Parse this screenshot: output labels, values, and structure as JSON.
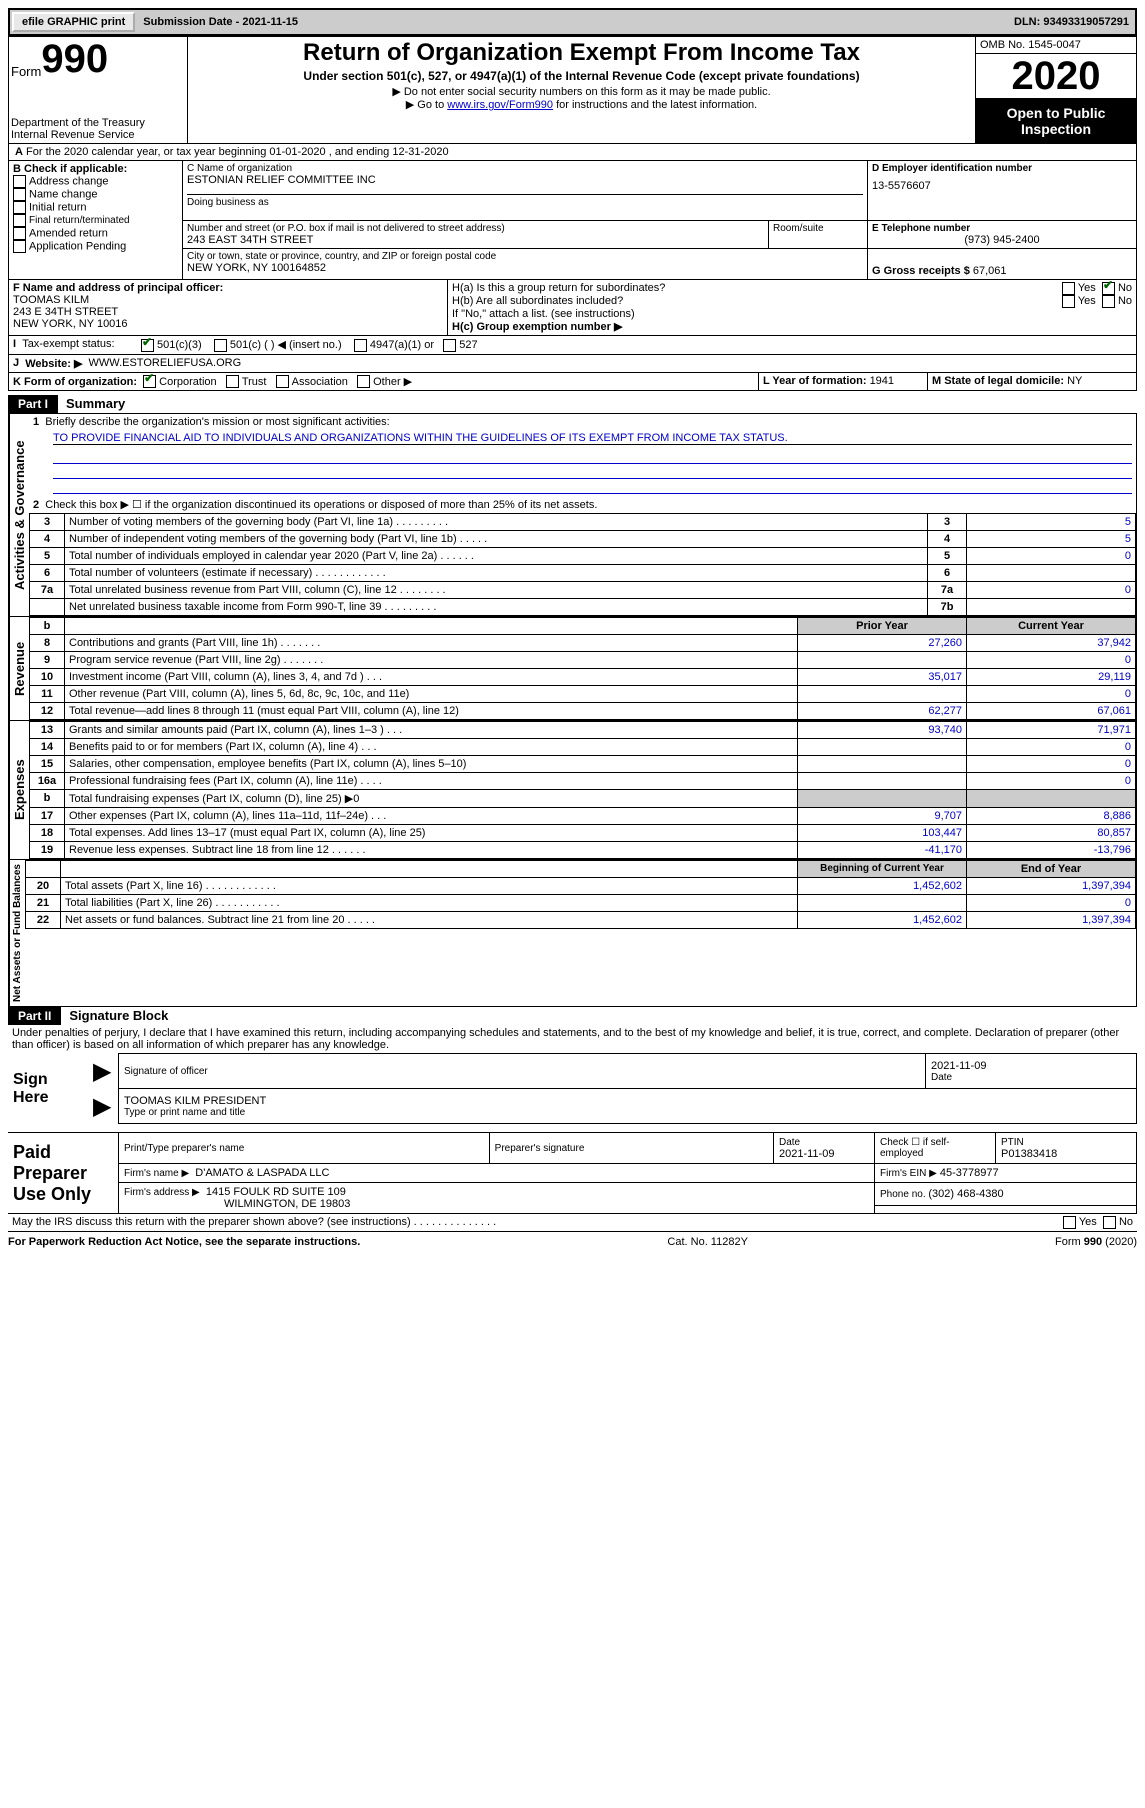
{
  "topbar": {
    "efile": "efile GRAPHIC print",
    "subdate_label": "Submission Date - ",
    "subdate": "2021-11-15",
    "dln_label": "DLN: ",
    "dln": "93493319057291"
  },
  "header": {
    "form_word": "Form",
    "form_no": "990",
    "dept1": "Department of the Treasury",
    "dept2": "Internal Revenue Service",
    "title": "Return of Organization Exempt From Income Tax",
    "sub1": "Under section 501(c), 527, or 4947(a)(1) of the Internal Revenue Code (except private foundations)",
    "sub2": "▶ Do not enter social security numbers on this form as it may be made public.",
    "sub3_a": "▶ Go to ",
    "sub3_link": "www.irs.gov/Form990",
    "sub3_b": " for instructions and the latest information.",
    "omb": "OMB No. 1545-0047",
    "year": "2020",
    "open1": "Open to Public",
    "open2": "Inspection"
  },
  "A": {
    "yearline": "For the 2020 calendar year, or tax year beginning 01-01-2020    , and ending 12-31-2020",
    "b_label": "B Check if applicable:",
    "b_opts": [
      "Address change",
      "Name change",
      "Initial return",
      "Final return/terminated",
      "Amended return",
      "Application Pending"
    ],
    "c_name_label": "C Name of organization",
    "org_name": "ESTONIAN RELIEF COMMITTEE INC",
    "dba_label": "Doing business as",
    "addr_label": "Number and street (or P.O. box if mail is not delivered to street address)",
    "room_label": "Room/suite",
    "addr": "243 EAST 34TH STREET",
    "city_label": "City or town, state or province, country, and ZIP or foreign postal code",
    "city": "NEW YORK, NY  100164852",
    "d_label": "D Employer identification number",
    "ein": "13-5576607",
    "e_label": "E Telephone number",
    "phone": "(973) 945-2400",
    "g_label": "G Gross receipts $ ",
    "gross": "67,061",
    "f_label": "F  Name and address of principal officer:",
    "officer_name": "TOOMAS KILM",
    "officer_addr1": "243 E 34TH STREET",
    "officer_addr2": "NEW YORK, NY  10016",
    "ha_label": "H(a)  Is this a group return for subordinates?",
    "hb_label": "H(b)  Are all subordinates included?",
    "hb_note": "If \"No,\" attach a list. (see instructions)",
    "hc_label": "H(c)  Group exemption number ▶",
    "yes": "Yes",
    "no": "No",
    "tax_label": "Tax-exempt status:",
    "tax_501c3": "501(c)(3)",
    "tax_501c": "501(c) (  ) ◀ (insert no.)",
    "tax_4947": "4947(a)(1) or",
    "tax_527": "527",
    "j_label": "Website: ▶",
    "website": "WWW.ESTORELIEFUSA.ORG",
    "k_label": "K Form of organization:",
    "k_corp": "Corporation",
    "k_trust": "Trust",
    "k_assoc": "Association",
    "k_other": "Other ▶",
    "l_label": "L Year of formation: ",
    "l_val": "1941",
    "m_label": "M State of legal domicile: ",
    "m_val": "NY"
  },
  "part1": {
    "hdr": "Part I",
    "title": "Summary",
    "side_ag": "Activities & Governance",
    "side_rev": "Revenue",
    "side_exp": "Expenses",
    "side_na": "Net Assets or Fund Balances",
    "q1": "Briefly describe the organization's mission or most significant activities:",
    "mission": "TO PROVIDE FINANCIAL AID TO INDIVIDUALS AND ORGANIZATIONS WITHIN THE GUIDELINES OF ITS EXEMPT FROM INCOME TAX STATUS.",
    "q2": "Check this box ▶ ☐  if the organization discontinued its operations or disposed of more than 25% of its net assets.",
    "rows_ag": [
      {
        "n": "3",
        "t": "Number of voting members of the governing body (Part VI, line 1a)  .    .    .    .    .    .    .    .    .",
        "b": "3",
        "v": "5"
      },
      {
        "n": "4",
        "t": "Number of independent voting members of the governing body (Part VI, line 1b)   .    .    .    .    .",
        "b": "4",
        "v": "5"
      },
      {
        "n": "5",
        "t": "Total number of individuals employed in calendar year 2020 (Part V, line 2a)    .    .    .    .    .    .",
        "b": "5",
        "v": "0"
      },
      {
        "n": "6",
        "t": "Total number of volunteers (estimate if necessary)    .    .    .    .    .    .    .    .    .    .    .    .",
        "b": "6",
        "v": ""
      },
      {
        "n": "7a",
        "t": "Total unrelated business revenue from Part VIII, column (C), line 12   .    .    .    .    .    .    .    .",
        "b": "7a",
        "v": "0"
      },
      {
        "n": "",
        "t": "Net unrelated business taxable income from Form 990-T, line 39   .    .    .    .    .    .    .    .    .",
        "b": "7b",
        "v": ""
      }
    ],
    "prior_hdr": "Prior Year",
    "curr_hdr": "Current Year",
    "rows_rev": [
      {
        "n": "8",
        "t": "Contributions and grants (Part VIII, line 1h)   .    .    .    .    .    .    .",
        "p": "27,260",
        "c": "37,942"
      },
      {
        "n": "9",
        "t": "Program service revenue (Part VIII, line 2g)    .    .    .    .    .    .    .",
        "p": "",
        "c": "0"
      },
      {
        "n": "10",
        "t": "Investment income (Part VIII, column (A), lines 3, 4, and 7d )    .    .    .",
        "p": "35,017",
        "c": "29,119"
      },
      {
        "n": "11",
        "t": "Other revenue (Part VIII, column (A), lines 5, 6d, 8c, 9c, 10c, and 11e)",
        "p": "",
        "c": "0"
      },
      {
        "n": "12",
        "t": "Total revenue—add lines 8 through 11 (must equal Part VIII, column (A), line 12)",
        "p": "62,277",
        "c": "67,061"
      }
    ],
    "rows_exp": [
      {
        "n": "13",
        "t": "Grants and similar amounts paid (Part IX, column (A), lines 1–3 )    .    .    .",
        "p": "93,740",
        "c": "71,971"
      },
      {
        "n": "14",
        "t": "Benefits paid to or for members (Part IX, column (A), line 4)    .    .    .",
        "p": "",
        "c": "0"
      },
      {
        "n": "15",
        "t": "Salaries, other compensation, employee benefits (Part IX, column (A), lines 5–10)",
        "p": "",
        "c": "0"
      },
      {
        "n": "16a",
        "t": "Professional fundraising fees (Part IX, column (A), line 11e)    .    .    .    .",
        "p": "",
        "c": "0"
      },
      {
        "n": "b",
        "t": "Total fundraising expenses (Part IX, column (D), line 25) ▶0",
        "p": "shade",
        "c": "shade"
      },
      {
        "n": "17",
        "t": "Other expenses (Part IX, column (A), lines 11a–11d, 11f–24e)   .    .    .",
        "p": "9,707",
        "c": "8,886"
      },
      {
        "n": "18",
        "t": "Total expenses. Add lines 13–17 (must equal Part IX, column (A), line 25)",
        "p": "103,447",
        "c": "80,857"
      },
      {
        "n": "19",
        "t": "Revenue less expenses. Subtract line 18 from line 12   .    .    .    .    .    .",
        "p": "-41,170",
        "c": "-13,796"
      }
    ],
    "begin_hdr": "Beginning of Current Year",
    "end_hdr": "End of Year",
    "rows_na": [
      {
        "n": "20",
        "t": "Total assets (Part X, line 16)   .    .    .    .    .    .    .    .    .    .    .    .",
        "p": "1,452,602",
        "c": "1,397,394"
      },
      {
        "n": "21",
        "t": "Total liabilities (Part X, line 26)   .    .    .    .    .    .    .    .    .    .    .",
        "p": "",
        "c": "0"
      },
      {
        "n": "22",
        "t": "Net assets or fund balances. Subtract line 21 from line 20   .    .    .    .    .",
        "p": "1,452,602",
        "c": "1,397,394"
      }
    ]
  },
  "part2": {
    "hdr": "Part II",
    "title": "Signature Block",
    "perjury": "Under penalties of perjury, I declare that I have examined this return, including accompanying schedules and statements, and to the best of my knowledge and belief, it is true, correct, and complete. Declaration of preparer (other than officer) is based on all information of which preparer has any knowledge.",
    "sign_here": "Sign Here",
    "sig_officer": "Signature of officer",
    "sig_date": "2021-11-09",
    "date_lbl": "Date",
    "typed": "TOOMAS KILM  PRESIDENT",
    "typed_lbl": "Type or print name and title",
    "paid": "Paid Preparer Use Only",
    "prep_name_lbl": "Print/Type preparer's name",
    "prep_sig_lbl": "Preparer's signature",
    "prep_date": "2021-11-09",
    "check_self": "Check ☐ if self-employed",
    "ptin_lbl": "PTIN",
    "ptin": "P01383418",
    "firm_name_lbl": "Firm's name    ▶",
    "firm_name": "D'AMATO & LASPADA LLC",
    "firm_ein_lbl": "Firm's EIN ▶",
    "firm_ein": "45-3778977",
    "firm_addr_lbl": "Firm's address ▶",
    "firm_addr1": "1415 FOULK RD SUITE 109",
    "firm_addr2": "WILMINGTON, DE  19803",
    "phone_lbl": "Phone no. ",
    "phone": "(302) 468-4380",
    "discuss": "May the IRS discuss this return with the preparer shown above? (see instructions)    .    .    .    .    .    .    .    .    .    .    .    .    .    .",
    "paperwork": "For Paperwork Reduction Act Notice, see the separate instructions.",
    "cat": "Cat. No. 11282Y",
    "formno": "Form 990 (2020)"
  }
}
